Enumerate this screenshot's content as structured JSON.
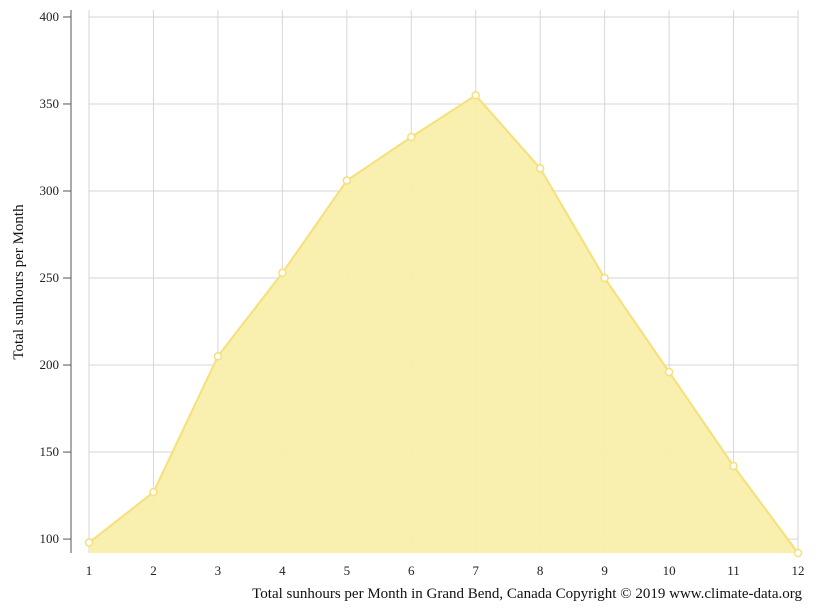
{
  "chart_data": {
    "type": "area",
    "title": "",
    "caption": "Total sunhours per Month in Grand Bend, Canada Copyright © 2019 www.climate-data.org",
    "xlabel": "",
    "ylabel": "Total sunhours per Month",
    "x": [
      1,
      2,
      3,
      4,
      5,
      6,
      7,
      8,
      9,
      10,
      11,
      12
    ],
    "y_ticks": [
      100,
      150,
      200,
      250,
      300,
      350,
      400
    ],
    "ylim": [
      92,
      404
    ],
    "grid": true,
    "legend": "none",
    "series": [
      {
        "values": [
          98,
          127,
          205,
          253,
          306,
          331,
          355,
          313,
          250,
          196,
          142,
          92
        ],
        "fill_color": "#f9eeaa",
        "line_color": "#f5e07a",
        "marker_color": "#ffffff"
      }
    ]
  }
}
